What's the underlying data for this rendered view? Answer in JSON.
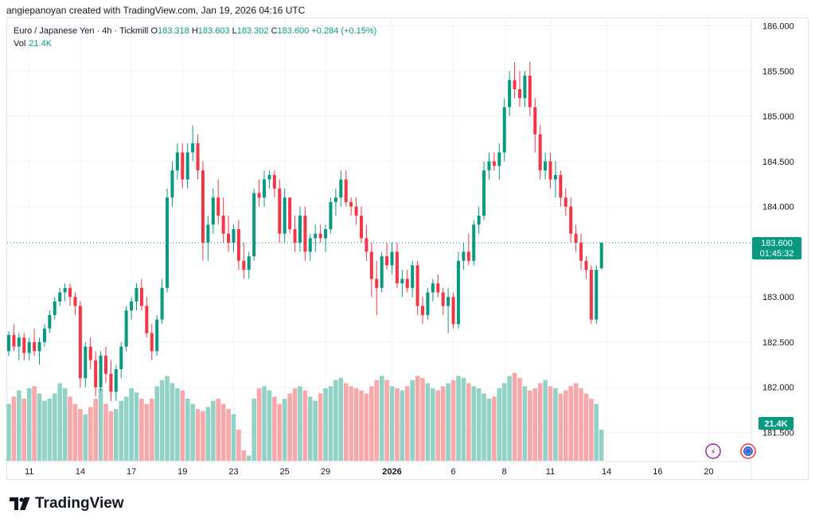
{
  "credit": "angiepanoyan created with TradingView.com, Jan 19, 2026 04:16 UTC",
  "legend": {
    "symbol": "Euro / Japanese Yen",
    "interval": "4h",
    "broker": "Tickmill",
    "o_label": "O",
    "o": "183.318",
    "h_label": "H",
    "h": "183.603",
    "l_label": "L",
    "l": "183.302",
    "c_label": "C",
    "c": "183.600",
    "change": "+0.284 (+0.15%)",
    "vol_label": "Vol",
    "vol_value": "21.4K"
  },
  "price_badge": {
    "price": "183.600",
    "countdown": "01:45:32"
  },
  "vol_badge": "21.4K",
  "brand": "TradingView",
  "colors": {
    "up": "#089981",
    "down": "#f23645",
    "vol_up": "#92d2c6",
    "vol_down": "#f7a8ab"
  },
  "chart_data": {
    "type": "candlestick",
    "title": "Euro / Japanese Yen · 4h · Tickmill",
    "ylim": [
      181.3,
      186.1
    ],
    "y_ticks": [
      "186.000",
      "185.500",
      "185.000",
      "184.500",
      "184.000",
      "183.000",
      "182.500",
      "182.000",
      "181.500"
    ],
    "x_ticks": [
      {
        "label": "11",
        "i": 4
      },
      {
        "label": "14",
        "i": 14
      },
      {
        "label": "17",
        "i": 24
      },
      {
        "label": "19",
        "i": 34
      },
      {
        "label": "23",
        "i": 44
      },
      {
        "label": "25",
        "i": 54
      },
      {
        "label": "29",
        "i": 62
      },
      {
        "label": "2026",
        "i": 75
      },
      {
        "label": "6",
        "i": 87
      },
      {
        "label": "8",
        "i": 97
      },
      {
        "label": "11",
        "i": 106
      },
      {
        "label": "14",
        "i": 117
      },
      {
        "label": "16",
        "i": 127
      },
      {
        "label": "20",
        "i": 137
      }
    ],
    "last_price": 183.6,
    "candles": [
      [
        182.4,
        182.62,
        182.35,
        182.58
      ],
      [
        182.58,
        182.7,
        182.4,
        182.45
      ],
      [
        182.45,
        182.6,
        182.3,
        182.55
      ],
      [
        182.55,
        182.6,
        182.3,
        182.38
      ],
      [
        182.38,
        182.55,
        182.3,
        182.5
      ],
      [
        182.5,
        182.65,
        182.35,
        182.4
      ],
      [
        182.4,
        182.55,
        182.25,
        182.5
      ],
      [
        182.5,
        182.7,
        182.45,
        182.65
      ],
      [
        182.65,
        182.85,
        182.6,
        182.8
      ],
      [
        182.8,
        183.0,
        182.75,
        182.95
      ],
      [
        182.95,
        183.1,
        182.9,
        183.05
      ],
      [
        183.05,
        183.15,
        182.95,
        183.1
      ],
      [
        183.1,
        183.15,
        182.9,
        183.0
      ],
      [
        183.0,
        183.05,
        182.8,
        182.9
      ],
      [
        182.9,
        182.95,
        182.0,
        182.1
      ],
      [
        182.1,
        182.5,
        182.0,
        182.45
      ],
      [
        182.45,
        182.55,
        182.2,
        182.3
      ],
      [
        182.3,
        182.4,
        181.9,
        182.0
      ],
      [
        182.0,
        182.4,
        181.95,
        182.35
      ],
      [
        182.35,
        182.45,
        182.05,
        182.15
      ],
      [
        182.15,
        182.3,
        181.85,
        181.95
      ],
      [
        181.95,
        182.25,
        181.85,
        182.2
      ],
      [
        182.2,
        182.5,
        182.1,
        182.45
      ],
      [
        182.45,
        182.9,
        182.4,
        182.85
      ],
      [
        182.85,
        183.0,
        182.75,
        182.95
      ],
      [
        182.95,
        183.15,
        182.85,
        183.1
      ],
      [
        183.1,
        183.2,
        182.85,
        182.9
      ],
      [
        182.9,
        183.0,
        182.55,
        182.6
      ],
      [
        182.6,
        182.7,
        182.3,
        182.4
      ],
      [
        182.4,
        182.8,
        182.35,
        182.75
      ],
      [
        182.75,
        183.2,
        182.7,
        183.1
      ],
      [
        183.1,
        184.2,
        183.05,
        184.1
      ],
      [
        184.1,
        184.5,
        184.0,
        184.4
      ],
      [
        184.4,
        184.7,
        184.3,
        184.6
      ],
      [
        184.6,
        184.7,
        184.2,
        184.3
      ],
      [
        184.3,
        184.7,
        184.2,
        184.6
      ],
      [
        184.6,
        184.9,
        184.5,
        184.7
      ],
      [
        184.7,
        184.8,
        184.3,
        184.4
      ],
      [
        184.4,
        184.5,
        183.4,
        183.6
      ],
      [
        183.6,
        183.9,
        183.4,
        183.8
      ],
      [
        183.8,
        184.2,
        183.7,
        184.1
      ],
      [
        184.1,
        184.3,
        183.8,
        183.9
      ],
      [
        183.9,
        184.1,
        183.6,
        183.7
      ],
      [
        183.7,
        183.9,
        183.5,
        183.6
      ],
      [
        183.6,
        183.8,
        183.5,
        183.75
      ],
      [
        183.75,
        183.85,
        183.3,
        183.4
      ],
      [
        183.4,
        183.6,
        183.2,
        183.3
      ],
      [
        183.3,
        183.5,
        183.2,
        183.45
      ],
      [
        183.45,
        184.2,
        183.4,
        184.15
      ],
      [
        184.15,
        184.3,
        184.0,
        184.1
      ],
      [
        184.1,
        184.4,
        184.0,
        184.3
      ],
      [
        184.3,
        184.4,
        184.2,
        184.35
      ],
      [
        184.35,
        184.4,
        184.1,
        184.2
      ],
      [
        184.2,
        184.3,
        183.6,
        183.7
      ],
      [
        183.7,
        184.2,
        183.6,
        184.1
      ],
      [
        184.1,
        184.1,
        183.7,
        183.75
      ],
      [
        183.75,
        183.9,
        183.5,
        183.6
      ],
      [
        183.6,
        184.0,
        183.5,
        183.9
      ],
      [
        183.9,
        184.0,
        183.4,
        183.5
      ],
      [
        183.5,
        183.7,
        183.4,
        183.65
      ],
      [
        183.65,
        183.8,
        183.5,
        183.7
      ],
      [
        183.7,
        183.8,
        183.6,
        183.65
      ],
      [
        183.65,
        183.8,
        183.5,
        183.75
      ],
      [
        183.75,
        184.1,
        183.7,
        184.05
      ],
      [
        184.05,
        184.2,
        183.9,
        184.1
      ],
      [
        184.1,
        184.4,
        184.0,
        184.3
      ],
      [
        184.3,
        184.4,
        184.0,
        184.05
      ],
      [
        184.05,
        184.1,
        183.9,
        184.0
      ],
      [
        184.0,
        184.1,
        183.8,
        183.9
      ],
      [
        183.9,
        184.0,
        183.6,
        183.65
      ],
      [
        183.65,
        183.8,
        183.4,
        183.5
      ],
      [
        183.5,
        183.6,
        183.0,
        183.2
      ],
      [
        183.2,
        183.4,
        182.8,
        183.1
      ],
      [
        183.1,
        183.5,
        183.05,
        183.45
      ],
      [
        183.45,
        183.6,
        183.3,
        183.35
      ],
      [
        183.35,
        183.6,
        183.25,
        183.5
      ],
      [
        183.5,
        183.6,
        183.1,
        183.15
      ],
      [
        183.15,
        183.3,
        183.0,
        183.2
      ],
      [
        183.2,
        183.3,
        183.05,
        183.1
      ],
      [
        183.1,
        183.4,
        183.0,
        183.35
      ],
      [
        183.35,
        183.4,
        182.8,
        182.9
      ],
      [
        182.9,
        183.0,
        182.7,
        182.8
      ],
      [
        182.8,
        183.1,
        182.75,
        183.05
      ],
      [
        183.05,
        183.2,
        182.95,
        183.15
      ],
      [
        183.15,
        183.25,
        183.0,
        183.05
      ],
      [
        183.05,
        183.1,
        182.8,
        182.9
      ],
      [
        182.9,
        183.1,
        182.6,
        183.0
      ],
      [
        183.0,
        183.05,
        182.65,
        182.7
      ],
      [
        182.7,
        183.5,
        182.65,
        183.4
      ],
      [
        183.4,
        183.6,
        183.3,
        183.5
      ],
      [
        183.5,
        183.7,
        183.35,
        183.4
      ],
      [
        183.4,
        183.85,
        183.35,
        183.8
      ],
      [
        183.8,
        184.0,
        183.7,
        183.9
      ],
      [
        183.9,
        184.5,
        183.85,
        184.4
      ],
      [
        184.4,
        184.6,
        184.3,
        184.5
      ],
      [
        184.5,
        184.6,
        184.4,
        184.45
      ],
      [
        184.45,
        184.7,
        184.3,
        184.6
      ],
      [
        184.6,
        185.2,
        184.5,
        185.1
      ],
      [
        185.1,
        185.5,
        185.0,
        185.4
      ],
      [
        185.4,
        185.6,
        185.2,
        185.3
      ],
      [
        185.3,
        185.5,
        185.1,
        185.2
      ],
      [
        185.2,
        185.5,
        185.1,
        185.45
      ],
      [
        185.45,
        185.6,
        185.0,
        185.1
      ],
      [
        185.1,
        185.2,
        184.6,
        184.8
      ],
      [
        184.8,
        184.9,
        184.3,
        184.4
      ],
      [
        184.4,
        184.6,
        184.3,
        184.5
      ],
      [
        184.5,
        184.6,
        184.2,
        184.3
      ],
      [
        184.3,
        184.5,
        184.1,
        184.35
      ],
      [
        184.35,
        184.4,
        184.0,
        184.1
      ],
      [
        184.1,
        184.2,
        183.9,
        184.0
      ],
      [
        184.0,
        184.1,
        183.6,
        183.7
      ],
      [
        183.7,
        183.8,
        183.5,
        183.6
      ],
      [
        183.6,
        183.7,
        183.3,
        183.4
      ],
      [
        183.4,
        183.45,
        183.2,
        183.3
      ],
      [
        183.3,
        183.35,
        182.7,
        182.75
      ],
      [
        182.75,
        183.35,
        182.7,
        183.3
      ],
      [
        183.318,
        183.603,
        183.302,
        183.6
      ]
    ],
    "volume": [
      0.55,
      0.62,
      0.68,
      0.6,
      0.7,
      0.72,
      0.65,
      0.58,
      0.6,
      0.65,
      0.75,
      0.7,
      0.62,
      0.55,
      0.5,
      0.45,
      0.52,
      0.6,
      0.7,
      0.55,
      0.48,
      0.5,
      0.58,
      0.62,
      0.7,
      0.66,
      0.6,
      0.55,
      0.6,
      0.72,
      0.78,
      0.82,
      0.75,
      0.7,
      0.68,
      0.6,
      0.55,
      0.5,
      0.48,
      0.52,
      0.58,
      0.6,
      0.55,
      0.5,
      0.45,
      0.3,
      0.1,
      0.05,
      0.6,
      0.7,
      0.72,
      0.68,
      0.62,
      0.55,
      0.6,
      0.65,
      0.7,
      0.72,
      0.68,
      0.62,
      0.58,
      0.65,
      0.7,
      0.72,
      0.78,
      0.8,
      0.75,
      0.72,
      0.7,
      0.68,
      0.65,
      0.72,
      0.78,
      0.82,
      0.78,
      0.72,
      0.7,
      0.68,
      0.72,
      0.78,
      0.82,
      0.8,
      0.75,
      0.7,
      0.68,
      0.72,
      0.75,
      0.78,
      0.82,
      0.8,
      0.75,
      0.72,
      0.7,
      0.65,
      0.6,
      0.62,
      0.7,
      0.75,
      0.82,
      0.85,
      0.8,
      0.72,
      0.68,
      0.7,
      0.75,
      0.78,
      0.72,
      0.7,
      0.65,
      0.68,
      0.72,
      0.75,
      0.7,
      0.65,
      0.6,
      0.55,
      0.3
    ]
  }
}
